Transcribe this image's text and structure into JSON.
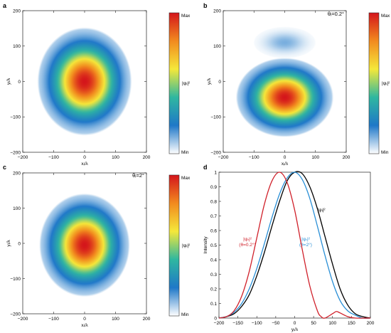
{
  "panels": {
    "a": {
      "label": "a",
      "annotation": ""
    },
    "b": {
      "label": "b",
      "annotation": "θᵢ=0.2°"
    },
    "c": {
      "label": "c",
      "annotation": "θᵢ=2°"
    },
    "d": {
      "label": "d"
    }
  },
  "colorbar": {
    "max_label": "Max",
    "min_label": "Min",
    "quantity_label": "|ψᵢ|²"
  },
  "colors": {
    "colormap": [
      "#ffffff",
      "#1f78c8",
      "#2fb7a0",
      "#f5e83a",
      "#f28a1e",
      "#d4151b"
    ],
    "incident": "#000000",
    "theta_0_2": "#d0202a",
    "theta_2": "#2a8fd6"
  },
  "chart_data": [
    {
      "panel": "a",
      "type": "heatmap",
      "title": "",
      "xlabel": "xᵢ/λ",
      "ylabel": "yᵢ/λ",
      "xlim": [
        -200,
        200
      ],
      "ylim": [
        -200,
        200
      ],
      "xticks": [
        -200,
        -100,
        0,
        100,
        200
      ],
      "yticks": [
        -200,
        -100,
        0,
        100,
        200
      ],
      "spots": [
        {
          "center": [
            0,
            0
          ],
          "width": 75,
          "amplitude": 1.0
        }
      ]
    },
    {
      "panel": "b",
      "type": "heatmap",
      "title": "",
      "xlabel": "xᵢ/λ",
      "ylabel": "yᵢ/λ",
      "xlim": [
        -200,
        200
      ],
      "ylim": [
        -200,
        200
      ],
      "xticks": [
        -200,
        -100,
        0,
        100,
        200
      ],
      "yticks": [
        -200,
        -100,
        0,
        100,
        200
      ],
      "spots": [
        {
          "center": [
            0,
            -45
          ],
          "width_x": 78,
          "width_y": 55,
          "amplitude": 1.0
        },
        {
          "center": [
            0,
            110
          ],
          "width_x": 50,
          "width_y": 22,
          "amplitude": 0.12
        }
      ]
    },
    {
      "panel": "c",
      "type": "heatmap",
      "title": "",
      "xlabel": "xᵢ/λ",
      "ylabel": "yᵢ/λ",
      "xlim": [
        -200,
        200
      ],
      "ylim": [
        -200,
        200
      ],
      "xticks": [
        -200,
        -100,
        0,
        100,
        200
      ],
      "yticks": [
        -200,
        -100,
        0,
        100,
        200
      ],
      "spots": [
        {
          "center": [
            0,
            -5
          ],
          "width": 72,
          "amplitude": 1.0
        }
      ]
    },
    {
      "panel": "d",
      "type": "line",
      "title": "",
      "xlabel": "yᵢ/λ",
      "ylabel": "Intensity",
      "xlim": [
        -200,
        200
      ],
      "ylim": [
        0,
        1
      ],
      "xticks": [
        -200,
        -150,
        -100,
        -50,
        0,
        50,
        100,
        150,
        200
      ],
      "yticks": [
        0,
        0.1,
        0.2,
        0.3,
        0.4,
        0.5,
        0.6,
        0.7,
        0.8,
        0.9,
        1
      ],
      "series": [
        {
          "name_lines": [
            "|ψᵢ|²"
          ],
          "color": "#000000",
          "x": [
            -200,
            -180,
            -160,
            -140,
            -120,
            -100,
            -80,
            -60,
            -40,
            -20,
            0,
            20,
            40,
            60,
            80,
            100,
            120,
            140,
            160,
            180,
            200
          ],
          "y": [
            0.0,
            0.01,
            0.03,
            0.08,
            0.16,
            0.29,
            0.45,
            0.63,
            0.8,
            0.94,
            1.0,
            0.99,
            0.9,
            0.75,
            0.56,
            0.37,
            0.2,
            0.09,
            0.03,
            0.01,
            0.0
          ]
        },
        {
          "name_lines": [
            "|ψᵣ|²",
            "(θ=2°)"
          ],
          "color": "#2a8fd6",
          "x": [
            -200,
            -180,
            -160,
            -140,
            -120,
            -100,
            -80,
            -60,
            -40,
            -20,
            0,
            20,
            40,
            60,
            80,
            100,
            120,
            140,
            160,
            180,
            200
          ],
          "y": [
            0.0,
            0.01,
            0.04,
            0.1,
            0.2,
            0.34,
            0.51,
            0.69,
            0.85,
            0.96,
            1.0,
            0.95,
            0.82,
            0.63,
            0.43,
            0.25,
            0.12,
            0.05,
            0.02,
            0.0,
            0.0
          ]
        },
        {
          "name_lines": [
            "|ψᵣ|²",
            "(θ=0.2°)"
          ],
          "color": "#d0202a",
          "x": [
            -200,
            -180,
            -160,
            -140,
            -120,
            -100,
            -80,
            -60,
            -40,
            -20,
            0,
            20,
            40,
            60,
            70,
            80,
            100,
            110,
            120,
            140,
            160,
            200
          ],
          "y": [
            0.0,
            0.01,
            0.05,
            0.15,
            0.32,
            0.55,
            0.78,
            0.94,
            1.0,
            0.93,
            0.74,
            0.47,
            0.22,
            0.05,
            0.01,
            0.0,
            0.03,
            0.045,
            0.035,
            0.01,
            0.0,
            0.0
          ]
        }
      ]
    }
  ]
}
